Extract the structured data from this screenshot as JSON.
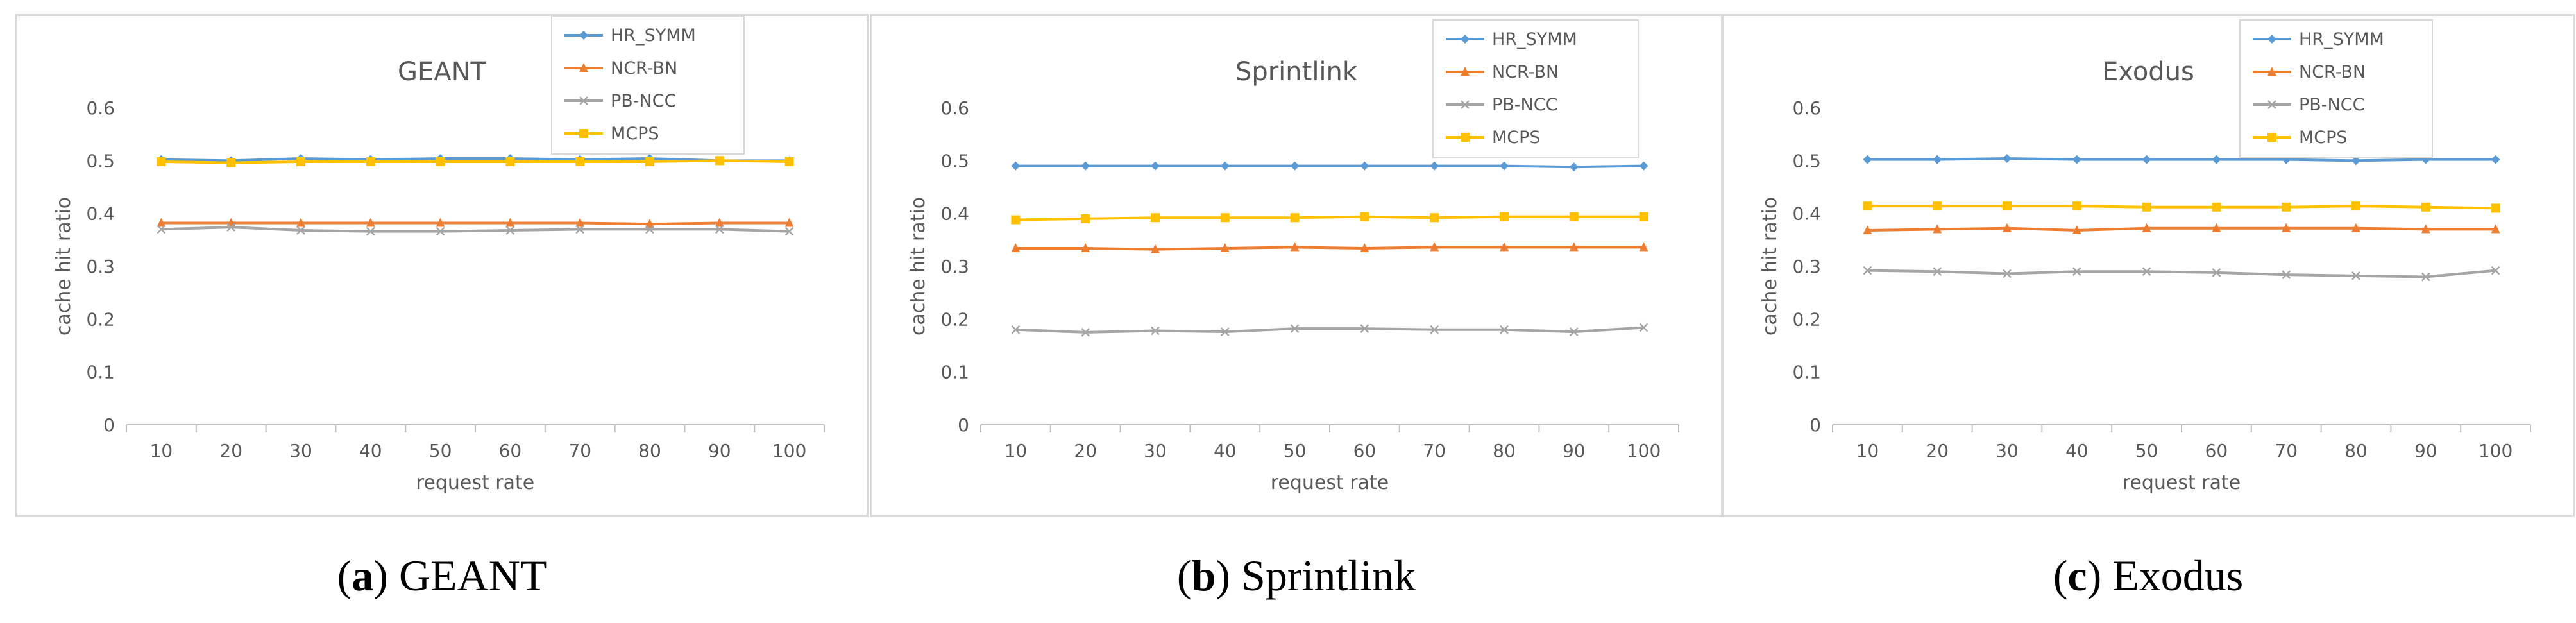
{
  "colors": {
    "HR_SYMM": "#5b9bd5",
    "NCR-BN": "#ed7d31",
    "PB-NCC": "#a5a5a5",
    "MCPS": "#ffc000"
  },
  "chart_data": [
    {
      "type": "line",
      "title": "GEANT",
      "caption_letter": "a",
      "caption_text": "GEANT",
      "xlabel": "request rate",
      "ylabel": "cache hit ratio",
      "ylim": [
        0,
        0.6
      ],
      "yticks": [
        "0",
        "0.1",
        "0.2",
        "0.3",
        "0.4",
        "0.5",
        "0.6"
      ],
      "categories": [
        "10",
        "20",
        "30",
        "40",
        "50",
        "60",
        "70",
        "80",
        "90",
        "100"
      ],
      "series": [
        {
          "name": "HR_SYMM",
          "values": [
            0.502,
            0.5,
            0.504,
            0.502,
            0.504,
            0.504,
            0.502,
            0.504,
            0.5,
            0.5
          ]
        },
        {
          "name": "NCR-BN",
          "values": [
            0.382,
            0.382,
            0.382,
            0.382,
            0.382,
            0.382,
            0.382,
            0.38,
            0.382,
            0.382
          ]
        },
        {
          "name": "PB-NCC",
          "values": [
            0.37,
            0.374,
            0.368,
            0.366,
            0.366,
            0.368,
            0.37,
            0.37,
            0.37,
            0.366
          ]
        },
        {
          "name": "MCPS",
          "values": [
            0.498,
            0.496,
            0.498,
            0.498,
            0.498,
            0.498,
            0.498,
            0.498,
            0.5,
            0.498
          ]
        }
      ]
    },
    {
      "type": "line",
      "title": "Sprintlink",
      "caption_letter": "b",
      "caption_text": "Sprintlink",
      "xlabel": "request rate",
      "ylabel": "cache hit ratio",
      "ylim": [
        0,
        0.6
      ],
      "yticks": [
        "0",
        "0.1",
        "0.2",
        "0.3",
        "0.4",
        "0.5",
        "0.6"
      ],
      "categories": [
        "10",
        "20",
        "30",
        "40",
        "50",
        "60",
        "70",
        "80",
        "90",
        "100"
      ],
      "series": [
        {
          "name": "HR_SYMM",
          "values": [
            0.49,
            0.49,
            0.49,
            0.49,
            0.49,
            0.49,
            0.49,
            0.49,
            0.488,
            0.49
          ]
        },
        {
          "name": "NCR-BN",
          "values": [
            0.334,
            0.334,
            0.332,
            0.334,
            0.336,
            0.334,
            0.336,
            0.336,
            0.336,
            0.336
          ]
        },
        {
          "name": "PB-NCC",
          "values": [
            0.18,
            0.175,
            0.178,
            0.176,
            0.182,
            0.182,
            0.18,
            0.18,
            0.176,
            0.184
          ]
        },
        {
          "name": "MCPS",
          "values": [
            0.388,
            0.39,
            0.392,
            0.392,
            0.392,
            0.394,
            0.392,
            0.394,
            0.394,
            0.394
          ]
        }
      ]
    },
    {
      "type": "line",
      "title": "Exodus",
      "caption_letter": "c",
      "caption_text": "Exodus",
      "xlabel": "request rate",
      "ylabel": "cache hit ratio",
      "ylim": [
        0,
        0.6
      ],
      "yticks": [
        "0",
        "0.1",
        "0.2",
        "0.3",
        "0.4",
        "0.5",
        "0.6"
      ],
      "categories": [
        "10",
        "20",
        "30",
        "40",
        "50",
        "60",
        "70",
        "80",
        "90",
        "100"
      ],
      "series": [
        {
          "name": "HR_SYMM",
          "values": [
            0.502,
            0.502,
            0.504,
            0.502,
            0.502,
            0.502,
            0.502,
            0.5,
            0.502,
            0.502
          ]
        },
        {
          "name": "NCR-BN",
          "values": [
            0.368,
            0.37,
            0.372,
            0.368,
            0.372,
            0.372,
            0.372,
            0.372,
            0.37,
            0.37
          ]
        },
        {
          "name": "PB-NCC",
          "values": [
            0.292,
            0.29,
            0.286,
            0.29,
            0.29,
            0.288,
            0.284,
            0.282,
            0.28,
            0.292
          ]
        },
        {
          "name": "MCPS",
          "values": [
            0.414,
            0.414,
            0.414,
            0.414,
            0.412,
            0.412,
            0.412,
            0.414,
            0.412,
            0.41
          ]
        }
      ]
    }
  ]
}
